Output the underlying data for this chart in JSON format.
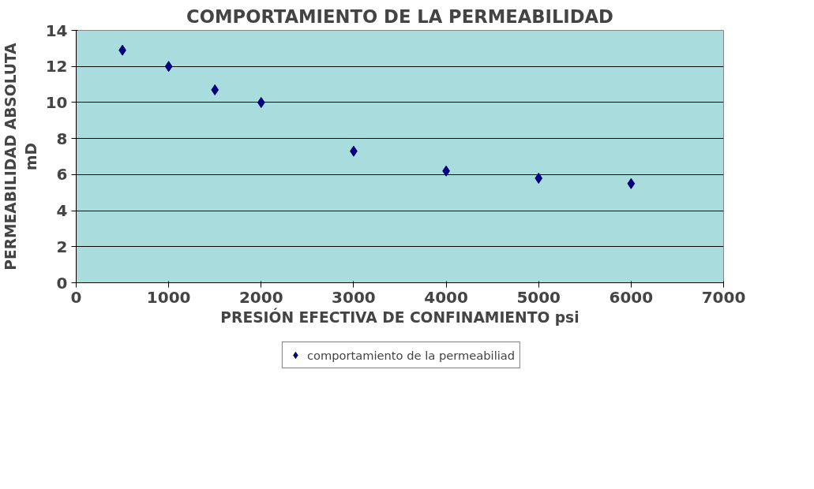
{
  "chart_data": {
    "type": "scatter",
    "title": "COMPORTAMIENTO DE LA PERMEABILIDAD",
    "xlabel": "PRESIÓN EFECTIVA DE CONFINAMIENTO psi",
    "ylabel": "PERMEABILIDAD ABSOLUTA\nmD",
    "x": [
      500,
      1000,
      1500,
      2000,
      3000,
      4000,
      5000,
      6000
    ],
    "series": [
      {
        "name": "comportamiento de la permeabiliad",
        "color": "#000080",
        "values": [
          12.9,
          12.0,
          10.7,
          10.0,
          7.3,
          6.2,
          5.8,
          5.5
        ]
      }
    ],
    "xlim": [
      0,
      7000
    ],
    "xticks": [
      0,
      1000,
      2000,
      3000,
      4000,
      5000,
      6000,
      7000
    ],
    "ylim": [
      0,
      14
    ],
    "yticks": [
      0,
      2,
      4,
      6,
      8,
      10,
      12,
      14
    ],
    "grid": "y",
    "legend": "bottom",
    "marker": "diamond"
  }
}
